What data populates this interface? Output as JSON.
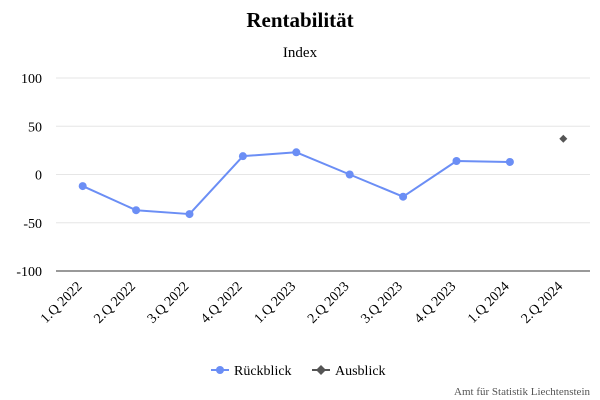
{
  "chart_data": {
    "type": "line",
    "title": "Rentabilität",
    "subtitle": "Index",
    "categories": [
      "1.Q 2022",
      "2.Q 2022",
      "3.Q 2022",
      "4.Q 2022",
      "1.Q 2023",
      "2.Q 2023",
      "3.Q 2023",
      "4.Q 2023",
      "1.Q 2024",
      "2.Q 2024"
    ],
    "y_ticks": [
      100,
      50,
      0,
      -50,
      -100
    ],
    "ylim": [
      -100,
      100
    ],
    "grid": true,
    "legend_position": "bottom-center",
    "series": [
      {
        "name": "Rückblick",
        "color": "#6b8ef5",
        "marker": "circle",
        "values": [
          -12,
          -37,
          -41,
          19,
          23,
          0,
          -23,
          14,
          13,
          null
        ]
      },
      {
        "name": "Ausblick",
        "color": "#555555",
        "marker": "diamond",
        "values": [
          null,
          null,
          null,
          null,
          null,
          null,
          null,
          null,
          null,
          37
        ]
      }
    ],
    "credit": "Amt für Statistik Liechtenstein"
  }
}
